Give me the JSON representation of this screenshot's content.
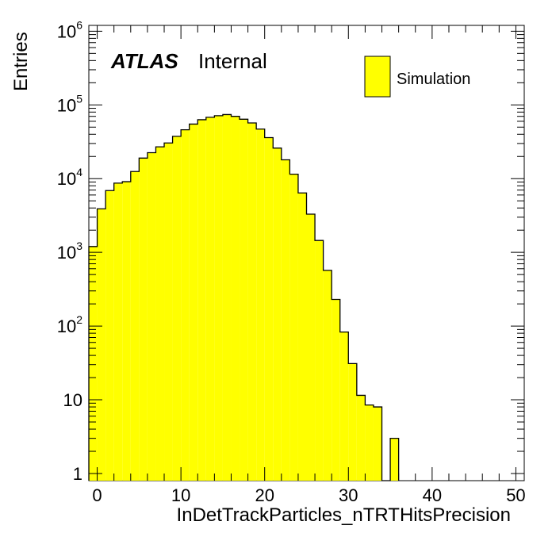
{
  "chart_data": {
    "type": "bar",
    "histogram": true,
    "bin_edges_start": -1,
    "bin_width": 1,
    "values": [
      1200,
      3900,
      6900,
      8700,
      9100,
      12500,
      19000,
      22500,
      27000,
      30500,
      37500,
      46000,
      55000,
      63000,
      68000,
      71500,
      74000,
      70000,
      64000,
      57000,
      47000,
      36000,
      26000,
      18000,
      11500,
      6400,
      3300,
      1450,
      570,
      230,
      83,
      31,
      11.5,
      8.5,
      8,
      0,
      3
    ],
    "series": [
      {
        "name": "Simulation",
        "color": "#ffff00"
      }
    ],
    "xlabel": "InDetTrackParticles_nTRTHitsPrecision",
    "ylabel": "Entries",
    "xlim": [
      -1,
      51
    ],
    "ylim": [
      0.8,
      1200000
    ],
    "y_scale": "log",
    "x_ticks": [
      "0",
      "10",
      "20",
      "30",
      "40",
      "50"
    ],
    "y_ticks": [
      {
        "base": "1",
        "exp": ""
      },
      {
        "base": "10",
        "exp": ""
      },
      {
        "base": "10",
        "exp": "2"
      },
      {
        "base": "10",
        "exp": "3"
      },
      {
        "base": "10",
        "exp": "4"
      },
      {
        "base": "10",
        "exp": "5"
      },
      {
        "base": "10",
        "exp": "6"
      }
    ],
    "legend_placement": "top-right",
    "grid": false
  },
  "annotation": {
    "atlas": "ATLAS",
    "label": "Internal"
  },
  "colors": {
    "fill": "#ffff00",
    "line": "#000000"
  }
}
